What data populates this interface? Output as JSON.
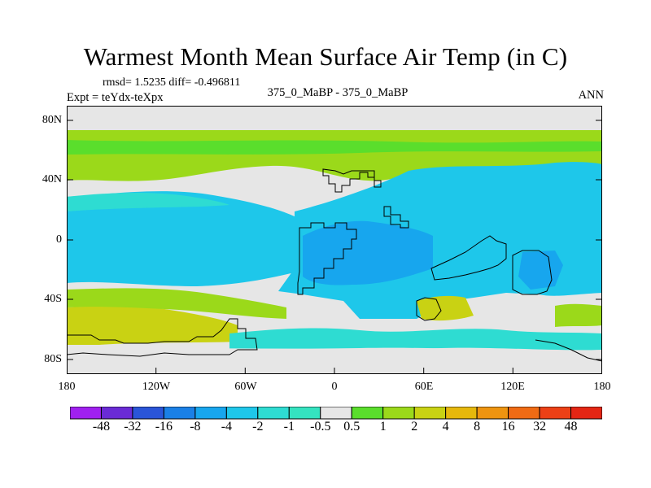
{
  "title": "Warmest Month Mean Surface Air Temp (in C)",
  "stats": "rmsd= 1.5235 diff= -0.496811",
  "expt": "Expt = teYdx-teXpx",
  "center_label": "375_0_MaBP - 375_0_MaBP",
  "period": "ANN",
  "y_axis_labels": [
    "80N",
    "40N",
    "0",
    "40S",
    "80S"
  ],
  "x_axis_labels": [
    "180",
    "120W",
    "60W",
    "0",
    "60E",
    "120E",
    "180"
  ],
  "colorbar": {
    "labels": [
      "-48",
      "-32",
      "-16",
      "-8",
      "-4",
      "-2",
      "-1",
      "-0.5",
      "0.5",
      "1",
      "2",
      "4",
      "8",
      "16",
      "32",
      "48"
    ],
    "colors": [
      "#a020f0",
      "#6a2bd6",
      "#2a55d8",
      "#1a80e6",
      "#17a6ee",
      "#1ec7ea",
      "#2edcd2",
      "#34e3c0",
      "#e6e6e6",
      "#5ade2c",
      "#9bd91a",
      "#c9d213",
      "#e6b80c",
      "#ee9410",
      "#f06b14",
      "#ec4016",
      "#e42614"
    ]
  },
  "map_colors": {
    "neutral": "#e6e6e6",
    "light_green": "#9bd91a",
    "green": "#5ade2c",
    "yellow": "#c9d213",
    "cyan": "#1ec7ea",
    "aqua": "#2edcd2",
    "blue": "#17a6ee"
  }
}
